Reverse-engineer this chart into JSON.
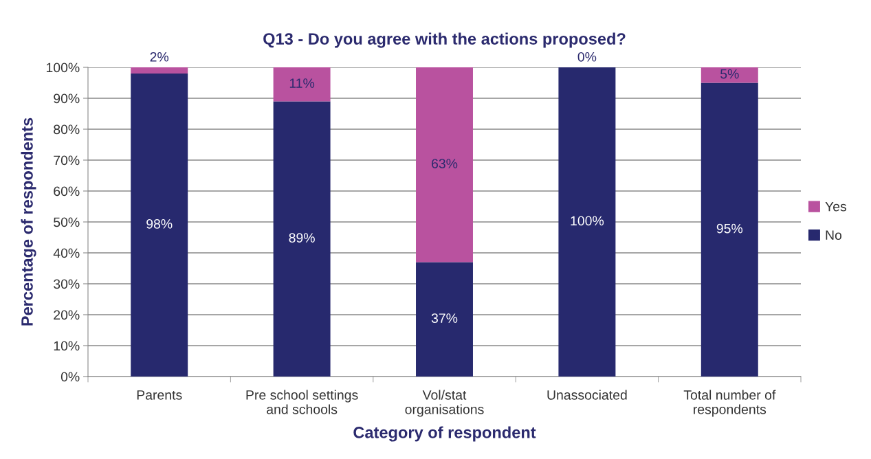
{
  "chart_data": {
    "type": "bar",
    "stacked": true,
    "title": "Q13 - Do you agree with the actions proposed?",
    "xlabel": "Category of respondent",
    "ylabel": "Percentage of respondents",
    "categories": [
      "Parents",
      "Pre school settings\nand schools",
      "Vol/stat\norganisations",
      "Unassociated",
      "Total number of\nrespondents"
    ],
    "series": [
      {
        "name": "No",
        "color": "#27296e",
        "values": [
          98,
          89,
          37,
          100,
          95
        ],
        "value_labels": [
          "98%",
          "89%",
          "37%",
          "100%",
          "95%"
        ]
      },
      {
        "name": "Yes",
        "color": "#b9529f",
        "values": [
          2,
          11,
          63,
          0,
          5
        ],
        "value_labels": [
          "2%",
          "11%",
          "63%",
          "0%",
          "5%"
        ]
      }
    ],
    "ylim": [
      0,
      100
    ],
    "yticks": [
      {
        "value": 0,
        "label": "0%"
      },
      {
        "value": 10,
        "label": "10%"
      },
      {
        "value": 20,
        "label": "20%"
      },
      {
        "value": 30,
        "label": "30%"
      },
      {
        "value": 40,
        "label": "40%"
      },
      {
        "value": 50,
        "label": "50%"
      },
      {
        "value": 60,
        "label": "60%"
      },
      {
        "value": 70,
        "label": "70%"
      },
      {
        "value": 80,
        "label": "80%"
      },
      {
        "value": 90,
        "label": "90%"
      },
      {
        "value": 100,
        "label": "100%"
      }
    ],
    "grid": "y",
    "legend": "right"
  }
}
